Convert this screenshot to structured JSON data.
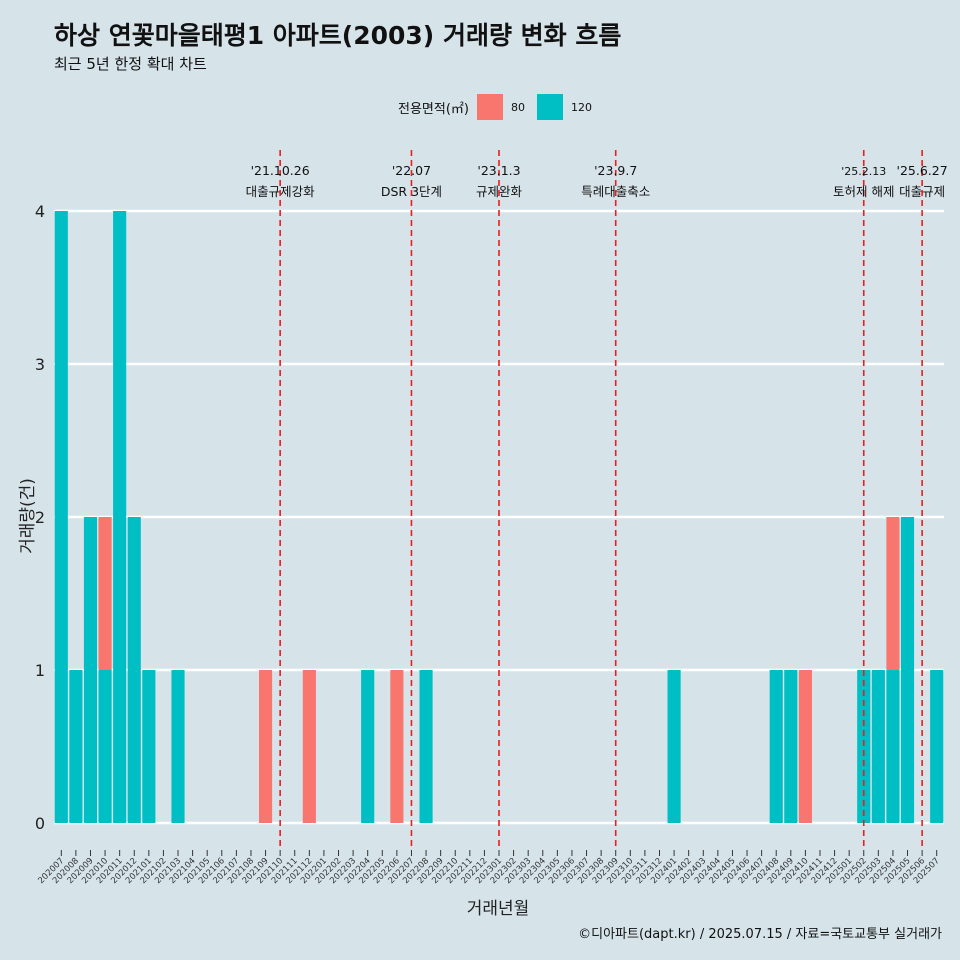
{
  "header": {
    "title": "하상 연꽃마을태평1 아파트(2003) 거래량 변화 흐름",
    "subtitle": "최근 5년 한정 확대 차트"
  },
  "legend": {
    "title": "전용면적(㎡)",
    "items": [
      {
        "label": "80",
        "color": "#f8766d"
      },
      {
        "label": "120",
        "color": "#00bfc4"
      }
    ]
  },
  "caption": "©디아파트(dapt.kr) / 2025.07.15 / 자료=국토교통부 실거래가",
  "chart_data": {
    "type": "bar",
    "stacked": true,
    "xlabel": "거래년월",
    "ylabel": "거래량(건)",
    "ylim": [
      0,
      4
    ],
    "yticks": [
      0,
      1,
      2,
      3,
      4
    ],
    "grid": "horizontal",
    "legend_position": "top",
    "categories": [
      "202007",
      "202008",
      "202009",
      "202010",
      "202011",
      "202012",
      "202101",
      "202102",
      "202103",
      "202104",
      "202105",
      "202106",
      "202107",
      "202108",
      "202109",
      "202110",
      "202111",
      "202112",
      "202201",
      "202202",
      "202203",
      "202204",
      "202205",
      "202206",
      "202207",
      "202208",
      "202209",
      "202210",
      "202211",
      "202212",
      "202301",
      "202302",
      "202303",
      "202304",
      "202305",
      "202306",
      "202307",
      "202308",
      "202309",
      "202310",
      "202311",
      "202312",
      "202401",
      "202402",
      "202403",
      "202404",
      "202405",
      "202406",
      "202407",
      "202408",
      "202409",
      "202410",
      "202411",
      "202412",
      "202501",
      "202502",
      "202503",
      "202504",
      "202505",
      "202506",
      "202507"
    ],
    "series": [
      {
        "name": "80",
        "color": "#f8766d",
        "values": [
          0,
          0,
          0,
          1,
          0,
          0,
          0,
          0,
          0,
          0,
          0,
          0,
          0,
          0,
          1,
          0,
          0,
          1,
          0,
          0,
          0,
          0,
          0,
          1,
          0,
          0,
          0,
          0,
          0,
          0,
          0,
          0,
          0,
          0,
          0,
          0,
          0,
          0,
          0,
          0,
          0,
          0,
          0,
          0,
          0,
          0,
          0,
          0,
          0,
          0,
          0,
          1,
          0,
          0,
          0,
          0,
          0,
          1,
          0,
          0,
          0
        ]
      },
      {
        "name": "120",
        "color": "#00bfc4",
        "values": [
          4,
          1,
          2,
          1,
          4,
          2,
          1,
          0,
          1,
          0,
          0,
          0,
          0,
          0,
          0,
          0,
          0,
          0,
          0,
          0,
          0,
          1,
          0,
          0,
          0,
          1,
          0,
          0,
          0,
          0,
          0,
          0,
          0,
          0,
          0,
          0,
          0,
          0,
          0,
          0,
          0,
          0,
          1,
          0,
          0,
          0,
          0,
          0,
          0,
          1,
          1,
          0,
          0,
          0,
          0,
          1,
          1,
          1,
          2,
          0,
          1
        ]
      }
    ],
    "annotations": [
      {
        "position": "202110",
        "date": "'21.10.26",
        "label": "대출규제강화"
      },
      {
        "position": "202207",
        "date": "'22.07",
        "label": "DSR 3단계"
      },
      {
        "position": "202301",
        "date": "'23.1.3",
        "label": "규제완화"
      },
      {
        "position": "202309",
        "date": "'23.9.7",
        "label": "특례대출축소"
      },
      {
        "position": "202502",
        "date": "'25.2.13",
        "label": "토허제 해제"
      },
      {
        "position": "202506",
        "date": "'25.6.27",
        "label": "대출규제"
      }
    ]
  }
}
